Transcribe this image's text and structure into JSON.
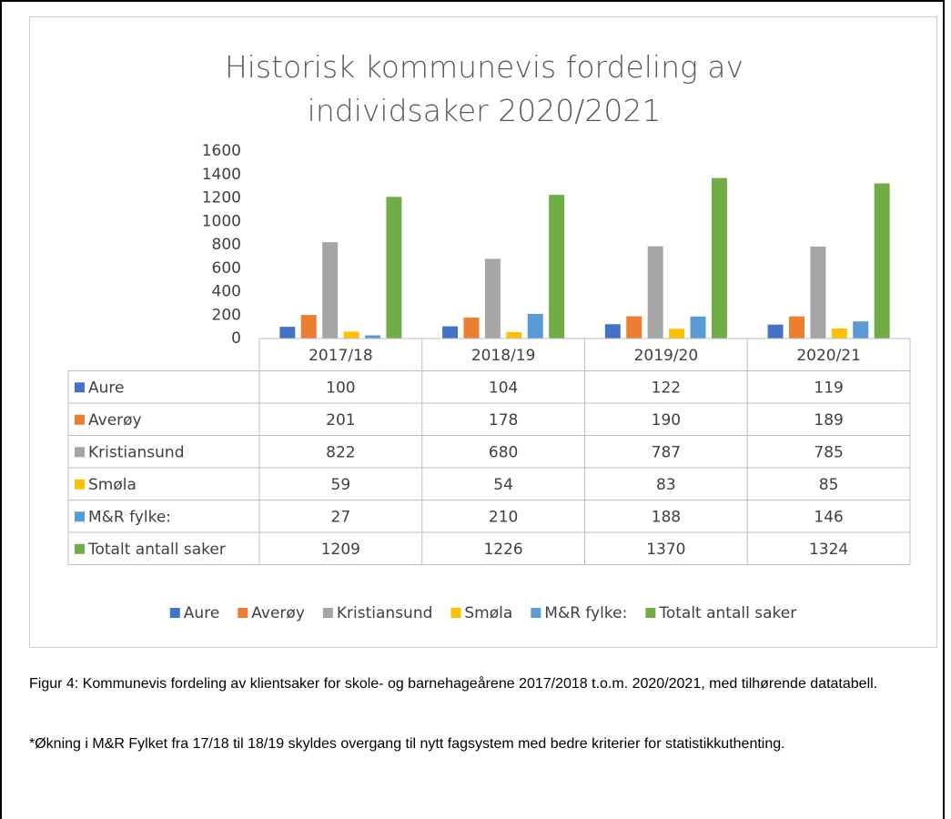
{
  "chart_data": {
    "type": "bar",
    "title": "Historisk kommunevis fordeling av individsaker 2020/2021",
    "categories": [
      "2017/18",
      "2018/19",
      "2019/20",
      "2020/21"
    ],
    "series": [
      {
        "name": "Aure",
        "color": "#4472c4",
        "values": [
          100,
          104,
          122,
          119
        ]
      },
      {
        "name": "Averøy",
        "color": "#ed7d31",
        "values": [
          201,
          178,
          190,
          189
        ]
      },
      {
        "name": "Kristiansund",
        "color": "#a5a5a5",
        "values": [
          822,
          680,
          787,
          785
        ]
      },
      {
        "name": "Smøla",
        "color": "#ffc000",
        "values": [
          59,
          54,
          83,
          85
        ]
      },
      {
        "name": "M&R fylke:",
        "color": "#5b9bd5",
        "values": [
          27,
          210,
          188,
          146
        ]
      },
      {
        "name": "Totalt antall saker",
        "color": "#70ad47",
        "values": [
          1209,
          1226,
          1370,
          1324
        ]
      }
    ],
    "ylim": [
      0,
      1600
    ],
    "yticks": [
      0,
      200,
      400,
      600,
      800,
      1000,
      1200,
      1400,
      1600
    ],
    "grid": false,
    "legend": "bottom"
  },
  "caption": [
    "Figur 4: Kommunevis fordeling av klientsaker for skole- og barnehageårene 2017/2018 t.o.m. 2020/2021, med tilhørende datatabell.",
    "*Økning i M&R Fylket fra 17/18 til 18/19 skyldes overgang til nytt fagsystem med bedre kriterier for statistikkuthenting."
  ]
}
